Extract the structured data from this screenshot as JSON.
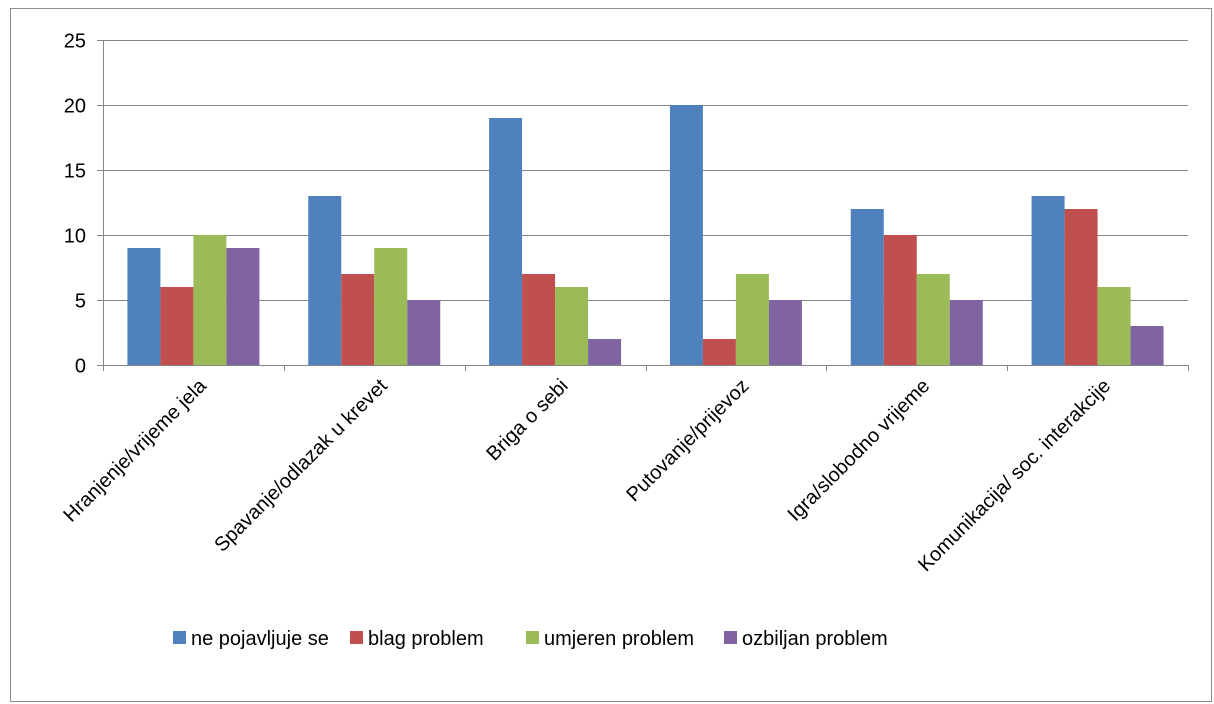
{
  "chart_data": {
    "type": "bar",
    "categories": [
      "Hranjenje/vrijeme jela",
      "Spavanje/odlazak u krevet",
      "Briga o sebi",
      "Putovanje/prijevoz",
      "Igra/slobodno vrijeme",
      "Komunikacija/ soc. interakcije"
    ],
    "series": [
      {
        "name": "ne pojavljuje se",
        "color": "#4F81BD",
        "values": [
          9,
          13,
          19,
          20,
          12,
          13
        ]
      },
      {
        "name": "blag problem",
        "color": "#C0504D",
        "values": [
          6,
          7,
          7,
          2,
          10,
          12
        ]
      },
      {
        "name": "umjeren problem",
        "color": "#9BBB59",
        "values": [
          10,
          9,
          6,
          7,
          7,
          6
        ]
      },
      {
        "name": "ozbiljan problem",
        "color": "#8064A2",
        "values": [
          9,
          5,
          2,
          5,
          5,
          3
        ]
      }
    ],
    "ylim": [
      0,
      25
    ],
    "yticks": [
      0,
      5,
      10,
      15,
      20,
      25
    ],
    "grid": true,
    "legend": "bottom"
  }
}
